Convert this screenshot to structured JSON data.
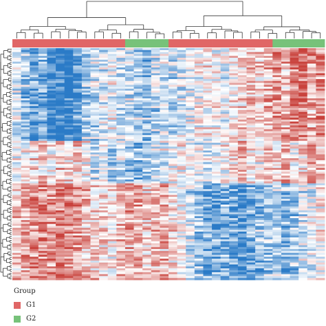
{
  "chart_data": {
    "type": "heatmap",
    "title": "",
    "n_columns": 36,
    "n_rows": 120,
    "column_groups": [
      "G1",
      "G1",
      "G1",
      "G1",
      "G1",
      "G1",
      "G1",
      "G1",
      "G1",
      "G1",
      "G1",
      "G1",
      "G1",
      "G2",
      "G2",
      "G2",
      "G2",
      "G2",
      "G1",
      "G1",
      "G1",
      "G1",
      "G1",
      "G1",
      "G1",
      "G1",
      "G1",
      "G1",
      "G1",
      "G1",
      "G2",
      "G2",
      "G2",
      "G2",
      "G2",
      "G2"
    ],
    "color_scale": {
      "low": "#2b7bc7",
      "mid": "#ffffff",
      "high": "#c9423c"
    },
    "row_blocks": [
      {
        "rows": 48,
        "pattern": [
          -0.2,
          -0.5,
          -0.7,
          -0.6,
          -0.9,
          -1.0,
          -1.1,
          -0.8,
          -0.4,
          -0.3,
          -0.2,
          -0.1,
          -0.3,
          -0.2,
          -0.4,
          -0.5,
          -0.3,
          -0.2,
          -0.3,
          -0.2,
          -0.1,
          0.0,
          0.1,
          0.0,
          -0.1,
          0.1,
          0.2,
          0.3,
          0.2,
          0.3,
          0.5,
          0.3,
          0.6,
          0.7,
          0.4,
          0.6
        ]
      },
      {
        "rows": 22,
        "pattern": [
          0.0,
          0.1,
          0.2,
          0.3,
          0.1,
          0.4,
          0.2,
          0.3,
          0.1,
          -0.2,
          -0.1,
          -0.3,
          -0.2,
          -0.4,
          -0.5,
          -0.3,
          -0.2,
          -0.1,
          0.0,
          0.1,
          0.0,
          -0.1,
          -0.2,
          0.0,
          0.1,
          0.2,
          0.4,
          0.2,
          0.1,
          0.3,
          0.2,
          0.4,
          0.1,
          0.2,
          0.5,
          0.3
        ]
      },
      {
        "rows": 50,
        "pattern": [
          0.3,
          0.4,
          0.5,
          0.6,
          0.5,
          0.7,
          0.6,
          0.5,
          0.3,
          0.2,
          0.2,
          0.1,
          0.3,
          0.5,
          0.4,
          0.2,
          0.3,
          0.4,
          0.2,
          0.0,
          -0.2,
          -0.4,
          -0.6,
          -0.7,
          -0.6,
          -0.7,
          -0.8,
          -0.6,
          -0.5,
          -0.4,
          -0.3,
          -0.5,
          -0.4,
          -0.2,
          -0.1,
          0.0
        ]
      }
    ]
  },
  "legend": {
    "title": "Group",
    "items": [
      {
        "label": "G1",
        "color": "#e06666"
      },
      {
        "label": "G2",
        "color": "#77c27a"
      }
    ]
  }
}
